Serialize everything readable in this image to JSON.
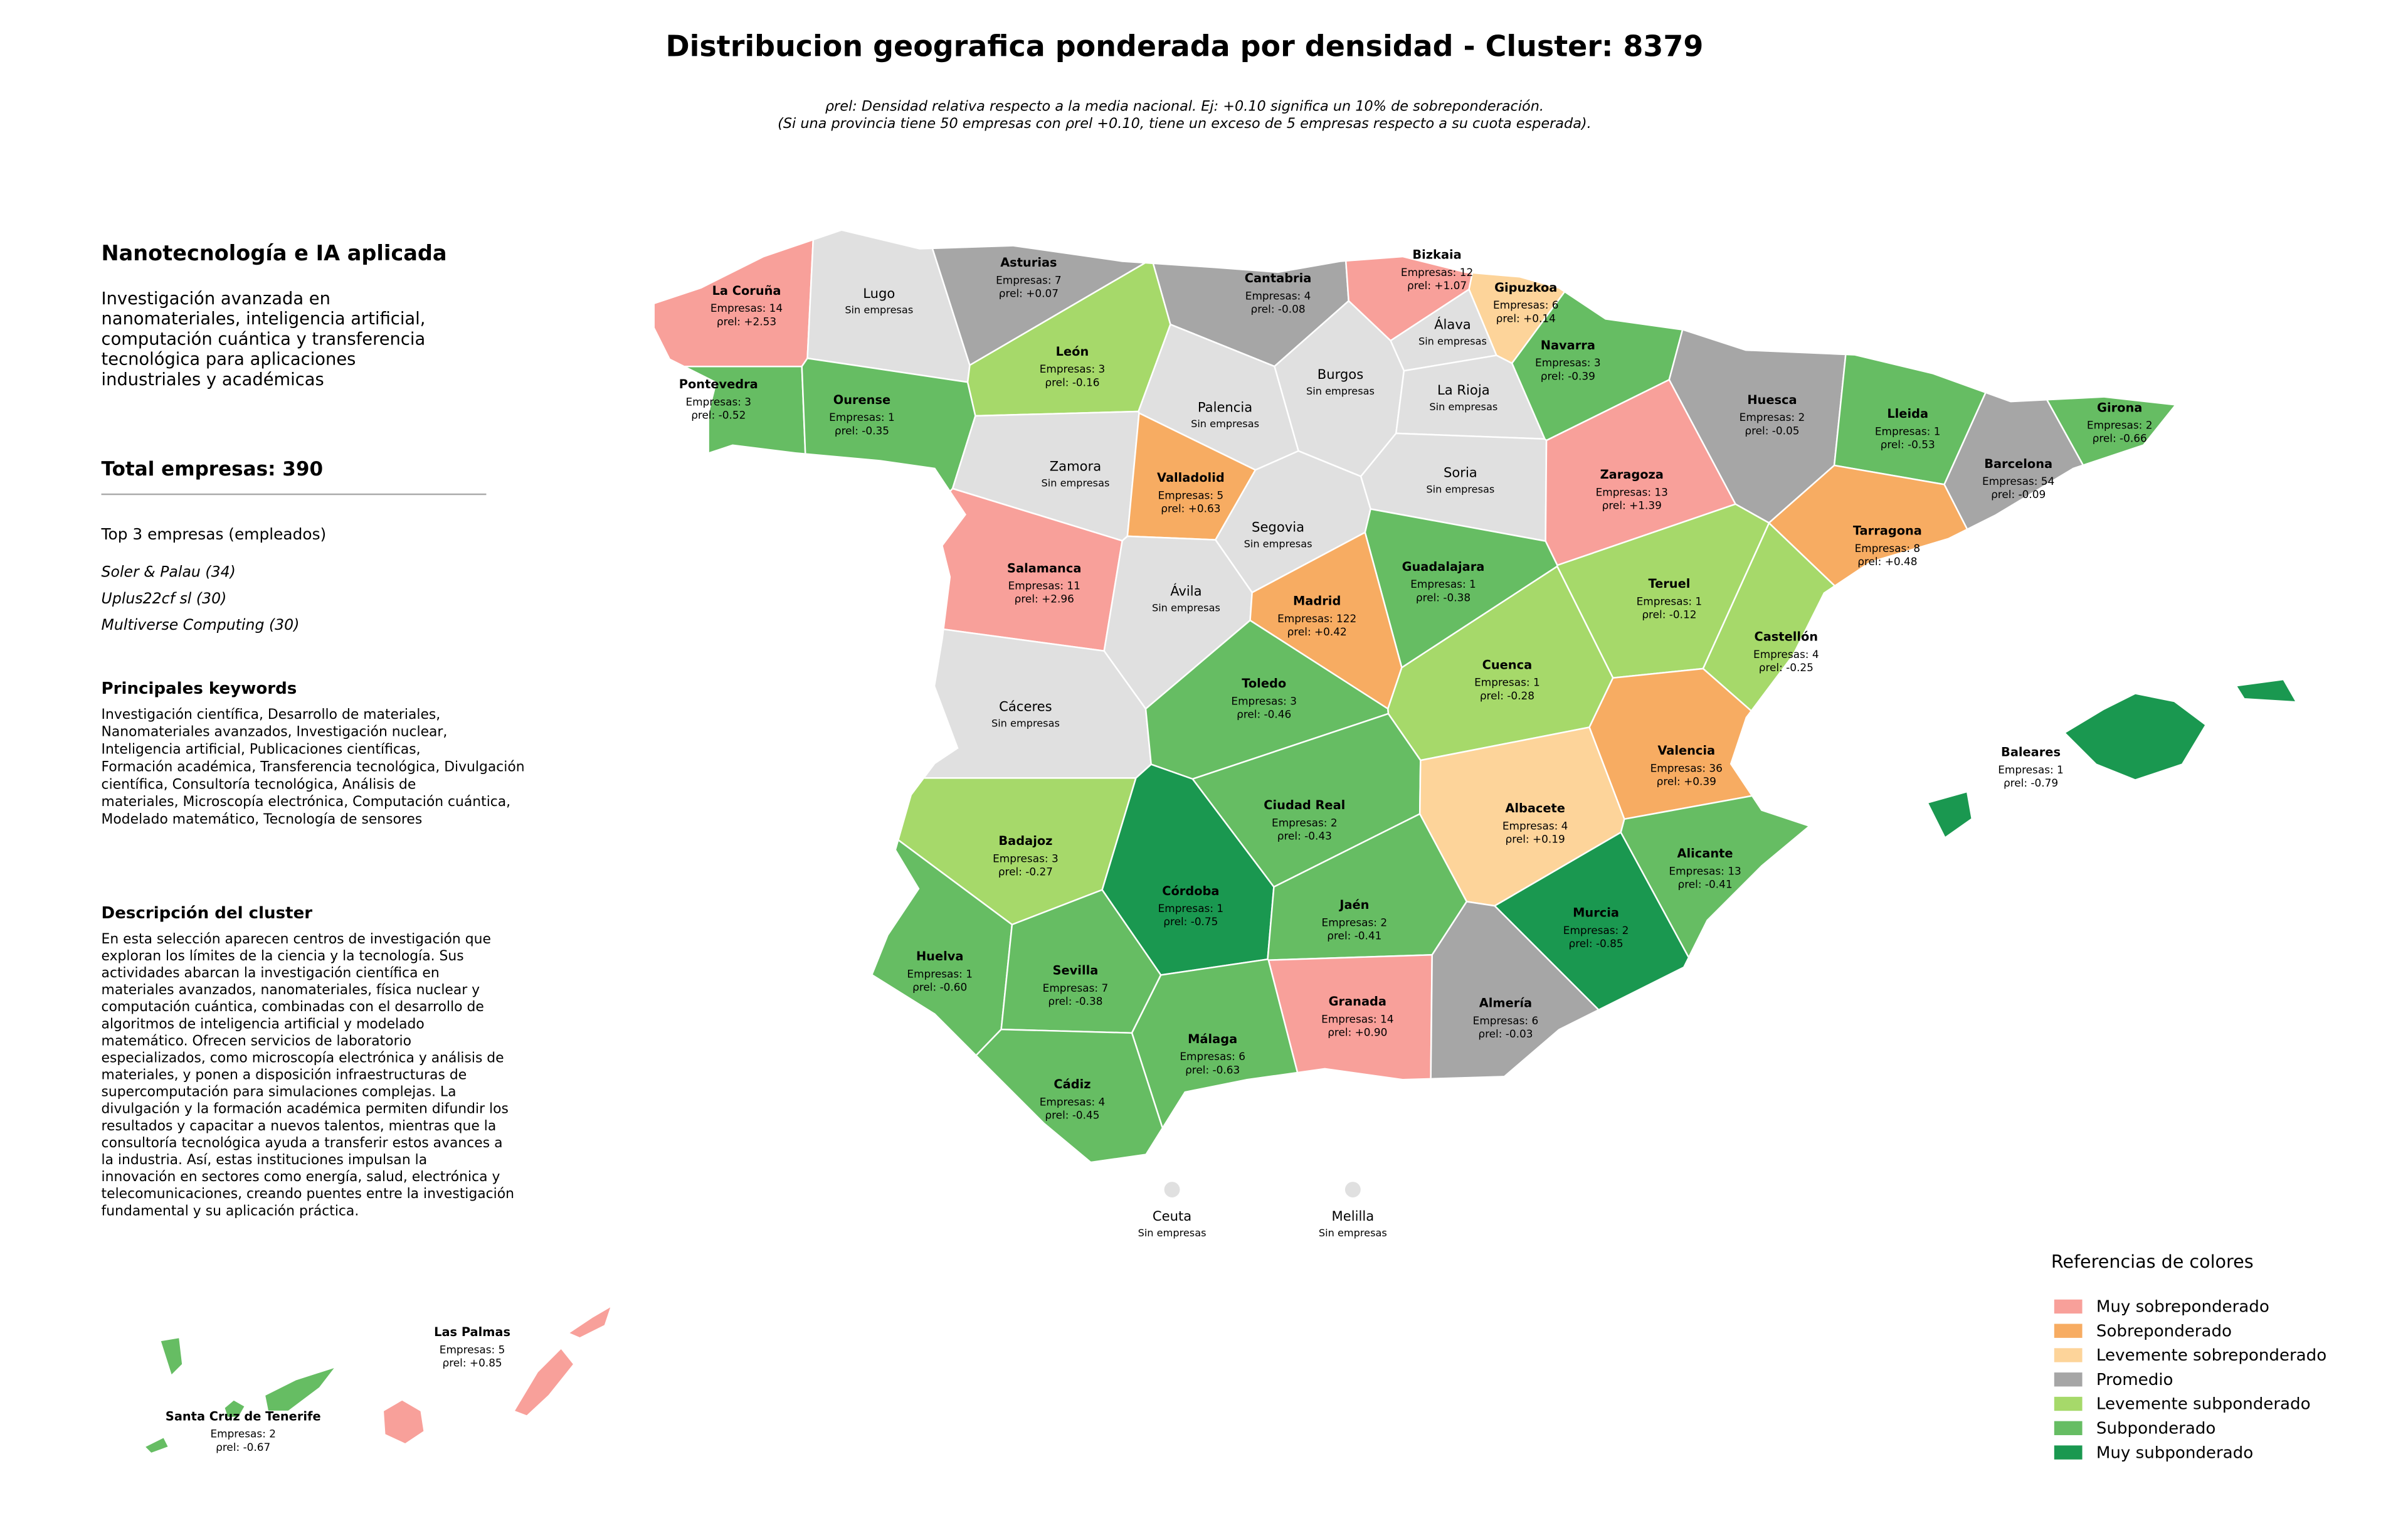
{
  "header": {
    "title": "Distribucion geografica ponderada por densidad - Cluster: 8379",
    "note_lines": [
      "ρrel: Densidad relativa respecto a la media nacional. Ej: +0.10 significa un 10% de sobreponderación.",
      "(Si una provincia tiene 50 empresas con ρrel +0.10, tiene un exceso de 5 empresas respecto a su cuota esperada)."
    ]
  },
  "panel": {
    "title": "Nanotecnología e IA aplicada",
    "summary_lines": [
      "Investigación avanzada en",
      "nanomateriales, inteligencia artificial,",
      "computación cuántica y transferencia",
      "tecnológica para aplicaciones",
      "industriales y académicas"
    ],
    "total": "Total empresas: 390",
    "top_heading": "Top 3 empresas (empleados)",
    "top_companies": [
      "Soler & Palau (34)",
      "Uplus22cf sl (30)",
      "Multiverse Computing (30)"
    ],
    "keywords_heading": "Principales keywords",
    "keywords_lines": [
      "Investigación científica, Desarrollo de materiales,",
      "Nanomateriales avanzados, Investigación nuclear,",
      "Inteligencia artificial, Publicaciones científicas,",
      "Formación académica, Transferencia tecnológica, Divulgación",
      "científica, Consultoría tecnológica, Análisis de",
      "materiales, Microscopía electrónica, Computación cuántica,",
      "Modelado matemático, Tecnología de sensores"
    ],
    "description_heading": "Descripción del cluster",
    "description_lines": [
      "En esta selección aparecen centros de investigación que",
      "exploran los límites de la ciencia y la tecnología. Sus",
      "actividades abarcan la investigación científica en",
      "materiales avanzados, nanomateriales, física nuclear y",
      "computación cuántica, combinadas con el desarrollo de",
      "algoritmos de inteligencia artificial y modelado",
      "matemático. Ofrecen servicios de laboratorio",
      "especializados, como microscopía electrónica y análisis de",
      "materiales, y ponen a disposición infraestructuras de",
      "supercomputación para simulaciones complejas. La",
      "divulgación y la formación académica permiten difundir los",
      "resultados y capacitar a nuevos talentos, mientras que la",
      "consultoría tecnológica ayuda a transferir estos avances a",
      "la industria. Así, estas instituciones impulsan la",
      "innovación en sectores como energía, salud, electrónica y",
      "telecomunicaciones, creando puentes entre la investigación",
      "fundamental y su aplicación práctica."
    ]
  },
  "map": {
    "provinces": [
      {
        "name": "La Coruña",
        "lines": [
          "Empresas: 14",
          "ρrel: +2.53"
        ],
        "color": "#f8a09a"
      },
      {
        "name": "Lugo",
        "lines": [
          "Sin empresas"
        ],
        "color": "#e0e0e0"
      },
      {
        "name": "Asturias",
        "lines": [
          "Empresas: 7",
          "ρrel: +0.07"
        ],
        "color": "#a6a6a6"
      },
      {
        "name": "Cantabria",
        "lines": [
          "Empresas: 4",
          "ρrel: -0.08"
        ],
        "color": "#a6a6a6"
      },
      {
        "name": "Bizkaia",
        "lines": [
          "Empresas: 12",
          "ρrel: +1.07"
        ],
        "color": "#f8a09a"
      },
      {
        "name": "Gipuzkoa",
        "lines": [
          "Empresas: 6",
          "ρrel: +0.14"
        ],
        "color": "#fdd49a"
      },
      {
        "name": "Álava",
        "lines": [
          "Sin empresas"
        ],
        "color": "#e0e0e0"
      },
      {
        "name": "Navarra",
        "lines": [
          "Empresas: 3",
          "ρrel: -0.39"
        ],
        "color": "#66bd63"
      },
      {
        "name": "Pontevedra",
        "lines": [
          "Empresas: 3",
          "ρrel: -0.52"
        ],
        "color": "#66bd63"
      },
      {
        "name": "Ourense",
        "lines": [
          "Empresas: 1",
          "ρrel: -0.35"
        ],
        "color": "#66bd63"
      },
      {
        "name": "León",
        "lines": [
          "Empresas: 3",
          "ρrel: -0.16"
        ],
        "color": "#a6d96a"
      },
      {
        "name": "Palencia",
        "lines": [
          "Sin empresas"
        ],
        "color": "#e0e0e0"
      },
      {
        "name": "Burgos",
        "lines": [
          "Sin empresas"
        ],
        "color": "#e0e0e0"
      },
      {
        "name": "La Rioja",
        "lines": [
          "Sin empresas"
        ],
        "color": "#e0e0e0"
      },
      {
        "name": "Huesca",
        "lines": [
          "Empresas: 2",
          "ρrel: -0.05"
        ],
        "color": "#a6a6a6"
      },
      {
        "name": "Lleida",
        "lines": [
          "Empresas: 1",
          "ρrel: -0.53"
        ],
        "color": "#66bd63"
      },
      {
        "name": "Girona",
        "lines": [
          "Empresas: 2",
          "ρrel: -0.66"
        ],
        "color": "#66bd63"
      },
      {
        "name": "Barcelona",
        "lines": [
          "Empresas: 54",
          "ρrel: -0.09"
        ],
        "color": "#a6a6a6"
      },
      {
        "name": "Zamora",
        "lines": [
          "Sin empresas"
        ],
        "color": "#e0e0e0"
      },
      {
        "name": "Valladolid",
        "lines": [
          "Empresas: 5",
          "ρrel: +0.63"
        ],
        "color": "#f7ac62"
      },
      {
        "name": "Soria",
        "lines": [
          "Sin empresas"
        ],
        "color": "#e0e0e0"
      },
      {
        "name": "Zaragoza",
        "lines": [
          "Empresas: 13",
          "ρrel: +1.39"
        ],
        "color": "#f8a09a"
      },
      {
        "name": "Tarragona",
        "lines": [
          "Empresas: 8",
          "ρrel: +0.48"
        ],
        "color": "#f7ac62"
      },
      {
        "name": "Segovia",
        "lines": [
          "Sin empresas"
        ],
        "color": "#e0e0e0"
      },
      {
        "name": "Salamanca",
        "lines": [
          "Empresas: 11",
          "ρrel: +2.96"
        ],
        "color": "#f8a09a"
      },
      {
        "name": "Guadalajara",
        "lines": [
          "Empresas: 1",
          "ρrel: -0.38"
        ],
        "color": "#66bd63"
      },
      {
        "name": "Ávila",
        "lines": [
          "Sin empresas"
        ],
        "color": "#e0e0e0"
      },
      {
        "name": "Madrid",
        "lines": [
          "Empresas: 122",
          "ρrel: +0.42"
        ],
        "color": "#f7ac62"
      },
      {
        "name": "Teruel",
        "lines": [
          "Empresas: 1",
          "ρrel: -0.12"
        ],
        "color": "#a6d96a"
      },
      {
        "name": "Castellón",
        "lines": [
          "Empresas: 4",
          "ρrel: -0.25"
        ],
        "color": "#a6d96a"
      },
      {
        "name": "Cáceres",
        "lines": [
          "Sin empresas"
        ],
        "color": "#e0e0e0"
      },
      {
        "name": "Toledo",
        "lines": [
          "Empresas: 3",
          "ρrel: -0.46"
        ],
        "color": "#66bd63"
      },
      {
        "name": "Cuenca",
        "lines": [
          "Empresas: 1",
          "ρrel: -0.28"
        ],
        "color": "#a6d96a"
      },
      {
        "name": "Valencia",
        "lines": [
          "Empresas: 36",
          "ρrel: +0.39"
        ],
        "color": "#f7ac62"
      },
      {
        "name": "Baleares",
        "lines": [
          "Empresas: 1",
          "ρrel: -0.79"
        ],
        "color": "#1a9850"
      },
      {
        "name": "Ciudad Real",
        "lines": [
          "Empresas: 2",
          "ρrel: -0.43"
        ],
        "color": "#66bd63"
      },
      {
        "name": "Albacete",
        "lines": [
          "Empresas: 4",
          "ρrel: +0.19"
        ],
        "color": "#fdd49a"
      },
      {
        "name": "Badajoz",
        "lines": [
          "Empresas: 3",
          "ρrel: -0.27"
        ],
        "color": "#a6d96a"
      },
      {
        "name": "Alicante",
        "lines": [
          "Empresas: 13",
          "ρrel: -0.41"
        ],
        "color": "#66bd63"
      },
      {
        "name": "Córdoba",
        "lines": [
          "Empresas: 1",
          "ρrel: -0.75"
        ],
        "color": "#1a9850"
      },
      {
        "name": "Jaén",
        "lines": [
          "Empresas: 2",
          "ρrel: -0.41"
        ],
        "color": "#66bd63"
      },
      {
        "name": "Murcia",
        "lines": [
          "Empresas: 2",
          "ρrel: -0.85"
        ],
        "color": "#1a9850"
      },
      {
        "name": "Huelva",
        "lines": [
          "Empresas: 1",
          "ρrel: -0.60"
        ],
        "color": "#66bd63"
      },
      {
        "name": "Sevilla",
        "lines": [
          "Empresas: 7",
          "ρrel: -0.38"
        ],
        "color": "#66bd63"
      },
      {
        "name": "Granada",
        "lines": [
          "Empresas: 14",
          "ρrel: +0.90"
        ],
        "color": "#f8a09a"
      },
      {
        "name": "Almería",
        "lines": [
          "Empresas: 6",
          "ρrel: -0.03"
        ],
        "color": "#a6a6a6"
      },
      {
        "name": "Málaga",
        "lines": [
          "Empresas: 6",
          "ρrel: -0.63"
        ],
        "color": "#66bd63"
      },
      {
        "name": "Cádiz",
        "lines": [
          "Empresas: 4",
          "ρrel: -0.45"
        ],
        "color": "#66bd63"
      },
      {
        "name": "Ceuta",
        "lines": [
          "Sin empresas"
        ],
        "color": "#e0e0e0"
      },
      {
        "name": "Melilla",
        "lines": [
          "Sin empresas"
        ],
        "color": "#e0e0e0"
      },
      {
        "name": "Las Palmas",
        "lines": [
          "Empresas: 5",
          "ρrel: +0.85"
        ],
        "color": "#f8a09a"
      },
      {
        "name": "Santa Cruz de Tenerife",
        "lines": [
          "Empresas: 2",
          "ρrel: -0.67"
        ],
        "color": "#66bd63"
      }
    ],
    "legend": {
      "title": "Referencias de colores",
      "items": [
        {
          "name": "Muy sobreponderado",
          "color": "#f8a09a"
        },
        {
          "name": "Sobreponderado",
          "color": "#f7ac62"
        },
        {
          "name": "Levemente sobreponderado",
          "color": "#fdd49a"
        },
        {
          "name": "Promedio",
          "color": "#a6a6a6"
        },
        {
          "name": "Levemente subponderado",
          "color": "#a6d96a"
        },
        {
          "name": "Subponderado",
          "color": "#66bd63"
        },
        {
          "name": "Muy subponderado",
          "color": "#1a9850"
        }
      ]
    }
  }
}
